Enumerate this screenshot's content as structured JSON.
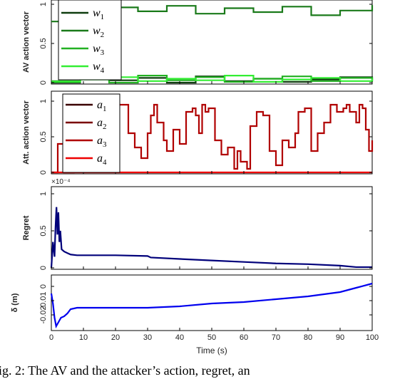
{
  "caption": "ig. 2: The AV and the attacker’s action, regret, an",
  "colors": {
    "w": [
      "#0f3d0f",
      "#1a7a1a",
      "#22b022",
      "#33ee33"
    ],
    "a": [
      "#3a0000",
      "#7a0000",
      "#b00000",
      "#ee0000"
    ],
    "regret": "#00007a",
    "delta": "#0000ee"
  },
  "chart_data": [
    {
      "type": "line",
      "step": true,
      "ylabel": "AV action vector",
      "xlim": [
        0,
        100
      ],
      "ylim": [
        0,
        1
      ],
      "yticks": [
        {
          "v": 0,
          "t": "0"
        },
        {
          "v": 0.5,
          "t": "0.5"
        },
        {
          "v": 1,
          "t": "1"
        }
      ],
      "legend_position": "top-left",
      "series": [
        {
          "name": "w1",
          "label_main": "w",
          "label_sub": "1",
          "values": [
            0,
            0.1,
            0.03,
            0.06,
            0,
            0.08,
            0.02,
            0.05,
            0.01,
            0.04,
            0.07,
            0.02
          ]
        },
        {
          "name": "w2",
          "label_main": "w",
          "label_sub": "2",
          "values": [
            0.78,
            0.93,
            0.96,
            0.91,
            0.98,
            0.88,
            0.95,
            0.9,
            0.97,
            0.86,
            0.92,
            0.99
          ]
        },
        {
          "name": "w3",
          "label_main": "w",
          "label_sub": "3",
          "values": [
            0.02,
            0.06,
            0,
            0.09,
            0.03,
            0.07,
            0.01,
            0.05,
            0.08,
            0.02,
            0.06,
            0.03
          ]
        },
        {
          "name": "w4",
          "label_main": "w",
          "label_sub": "4",
          "values": [
            0.01,
            0.04,
            0.07,
            0.02,
            0.05,
            0.03,
            0.09,
            0.01,
            0.04,
            0.06,
            0.02,
            0.05
          ]
        }
      ],
      "x": [
        0,
        9,
        18,
        27,
        36,
        45,
        54,
        63,
        72,
        81,
        90,
        100
      ]
    },
    {
      "type": "line",
      "step": true,
      "ylabel": "Att. action vector",
      "xlim": [
        0,
        100
      ],
      "ylim": [
        0,
        1
      ],
      "yticks": [
        {
          "v": 0,
          "t": "0"
        },
        {
          "v": 0.5,
          "t": "0.5"
        },
        {
          "v": 1,
          "t": "1"
        }
      ],
      "legend_position": "top-left",
      "x": [
        0,
        2,
        4,
        7,
        9,
        11,
        12,
        14,
        16,
        18,
        21,
        24,
        26,
        28,
        30,
        31,
        32,
        33,
        35,
        36,
        38,
        40,
        42,
        44,
        45,
        46,
        47,
        48,
        49,
        51,
        53,
        55,
        57,
        58,
        59,
        61,
        62,
        64,
        66,
        68,
        70,
        72,
        74,
        76,
        77,
        79,
        81,
        83,
        85,
        87,
        89,
        91,
        92,
        93,
        95,
        96,
        97,
        98,
        99,
        100
      ],
      "series": [
        {
          "name": "a1",
          "label_main": "a",
          "label_sub": "1",
          "values": null
        },
        {
          "name": "a2",
          "label_main": "a",
          "label_sub": "2",
          "values": null
        },
        {
          "name": "a3",
          "label_main": "a",
          "label_sub": "3",
          "values": [
            0,
            0.4,
            0,
            0.25,
            0.1,
            0.4,
            0.2,
            0.1,
            0.3,
            0.15,
            0.95,
            0.55,
            0.35,
            0.2,
            0.55,
            0.8,
            0.95,
            0.7,
            0.45,
            0.3,
            0.6,
            0.4,
            0.85,
            0.9,
            0.8,
            0.55,
            0.95,
            0.85,
            0.9,
            0.45,
            0.25,
            0.35,
            0.05,
            0.3,
            0.15,
            0.05,
            0.65,
            0.85,
            0.8,
            0.3,
            0.1,
            0.45,
            0.35,
            0.55,
            0.85,
            0.9,
            0.3,
            0.55,
            0.7,
            0.95,
            0.85,
            0.9,
            0.95,
            0.85,
            0.7,
            0.95,
            0.9,
            0.6,
            0.3,
            0.45
          ]
        },
        {
          "name": "a4",
          "label_main": "a",
          "label_sub": "4",
          "values": [
            0,
            0,
            0,
            0,
            0,
            0,
            0,
            0,
            0,
            0,
            0,
            0,
            0,
            0,
            0,
            0,
            0,
            0,
            0,
            0,
            0,
            0,
            0,
            0,
            0,
            0,
            0,
            0,
            0,
            0,
            0,
            0,
            0,
            0,
            0,
            0,
            0,
            0,
            0,
            0,
            0,
            0,
            0,
            0,
            0,
            0,
            0,
            0,
            0,
            0,
            0,
            0,
            0,
            0,
            0,
            0,
            0,
            0,
            0,
            0
          ]
        }
      ]
    },
    {
      "type": "line",
      "ylabel": "Regret",
      "exponent": "×10⁻⁴",
      "xlim": [
        0,
        100
      ],
      "ylim": [
        0,
        1
      ],
      "yticks": [
        {
          "v": 0,
          "t": "0"
        },
        {
          "v": 0.5,
          "t": "0.5"
        },
        {
          "v": 1,
          "t": "1"
        }
      ],
      "x": [
        0,
        0.5,
        1,
        1.3,
        1.6,
        1.9,
        2.2,
        2.5,
        2.8,
        3.2,
        4,
        5,
        6,
        8,
        10,
        20,
        30,
        31,
        40,
        50,
        60,
        70,
        80,
        90,
        95,
        100
      ],
      "values": [
        0,
        0.35,
        0.15,
        0.55,
        0.82,
        0.45,
        0.75,
        0.35,
        0.5,
        0.25,
        0.22,
        0.2,
        0.18,
        0.17,
        0.17,
        0.17,
        0.16,
        0.14,
        0.12,
        0.1,
        0.08,
        0.06,
        0.05,
        0.03,
        0.01,
        0.01
      ]
    },
    {
      "type": "line",
      "ylabel": "δ (m)",
      "xlabel": "Time (s)",
      "xlim": [
        0,
        100
      ],
      "ylim": [
        -0.03,
        0.008
      ],
      "yticks": [
        {
          "v": 0,
          "t": "0"
        },
        {
          "v": -0.01,
          "t": "-0.01"
        },
        {
          "v": -0.02,
          "t": "-0.02"
        }
      ],
      "xticks": [
        0,
        10,
        20,
        30,
        40,
        50,
        60,
        70,
        80,
        90,
        100
      ],
      "x": [
        0,
        0.5,
        1,
        1.5,
        2,
        2.5,
        3,
        4,
        5,
        6,
        8,
        10,
        20,
        30,
        40,
        50,
        60,
        70,
        80,
        90,
        95,
        100
      ],
      "values": [
        -0.005,
        -0.012,
        -0.022,
        -0.028,
        -0.026,
        -0.024,
        -0.022,
        -0.021,
        -0.019,
        -0.016,
        -0.015,
        -0.015,
        -0.015,
        -0.015,
        -0.014,
        -0.012,
        -0.011,
        -0.009,
        -0.007,
        -0.004,
        -0.001,
        0.002
      ]
    }
  ]
}
